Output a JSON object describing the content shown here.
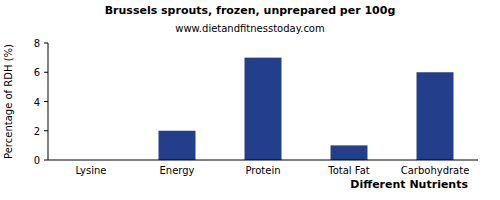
{
  "chart_data": {
    "type": "bar",
    "title": "Brussels sprouts, frozen, unprepared per 100g",
    "subtitle": "www.dietandfitnesstoday.com",
    "x_label": "Different Nutrients",
    "y_label": "Percentage of RDH (%)",
    "categories": [
      "Lysine",
      "Energy",
      "Protein",
      "Total Fat",
      "Carbohydrate"
    ],
    "values": [
      0,
      2,
      7,
      1,
      6
    ],
    "color": "#233e8b",
    "ylim": [
      0,
      8
    ],
    "yticks": [
      0,
      2,
      4,
      6,
      8
    ],
    "grid": false
  }
}
